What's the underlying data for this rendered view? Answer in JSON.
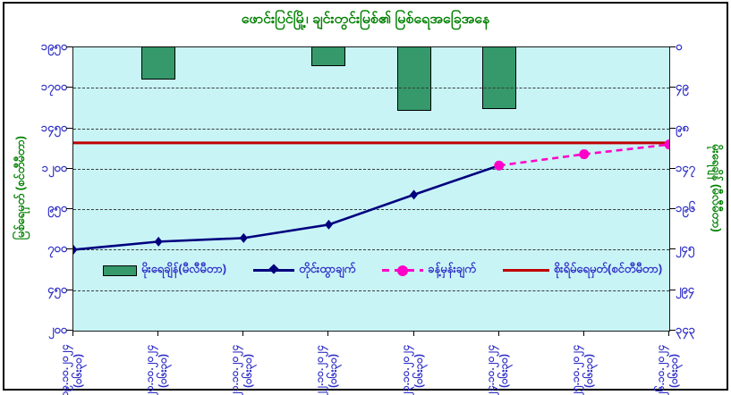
{
  "title": "ဖောင်းပြင်မြို့၊ ချင်းတွင်းမြစ်၏ မြစ်ရေအခြေအနေ",
  "colors": {
    "title_green": "#008000",
    "axis_label_blue": "#3030C8",
    "plot_background": "#C8F4F6",
    "bar_green": "#35996B",
    "observed_navy": "#00007E",
    "forecast_magenta": "#FF00C8",
    "danger_red": "#C00000",
    "frame_black": "#000000"
  },
  "chart_data": {
    "type": "combo-bar-line",
    "title": "ဖောင်းပြင်မြို့၊ ချင်းတွင်းမြစ်၏ မြစ်ရေအခြေအနေ",
    "grid": "horizontal-dashed",
    "legend_position": "inside-bottom-left",
    "categories": [
      {
        "date": "၁၉.၁၀.၂၀၂၄",
        "time": "(၀၆း၃၀)"
      },
      {
        "date": "၂၀.၁၀.၂၀၂၄",
        "time": "(၀၆း၃၀)"
      },
      {
        "date": "၂၁.၁၀.၂၀၂၄",
        "time": "(၀၆း၃၀)"
      },
      {
        "date": "၂၂.၁၀.၂၀၂၄",
        "time": "(၀၆း၃၀)"
      },
      {
        "date": "၂၃.၁၀.၂၀၂၄",
        "time": "(၀၆း၃၀)"
      },
      {
        "date": "၂၄.၁၀.၂၀၂၄",
        "time": "(၀၆း၃၀)"
      },
      {
        "date": "၂၅.၁၀.၂၀၂၄",
        "time": "(၀၆း၃၀)"
      },
      {
        "date": "၂၆.၁၀.၂၀၂၄",
        "time": "(၀၆း၃၀)"
      }
    ],
    "left_axis": {
      "title": "မြစ်ရေမှတ် (စင်တီမီတာ)",
      "min": 200,
      "max": 1950,
      "step": 250,
      "tick_values": [
        1950,
        1700,
        1450,
        1200,
        950,
        700,
        450,
        200
      ],
      "tick_labels": [
        "၁၉၅၀",
        "၁၇၀၀",
        "၁၄၅၀",
        "၁၂၀၀",
        "၉၅၀",
        "၇၀၀",
        "၄၅၀",
        "၂၀၀"
      ]
    },
    "right_axis": {
      "title": "မိုးရေချိန် (မီလီမီတာ)",
      "min": 0,
      "max": 343,
      "step": 49,
      "reversed": true,
      "tick_values": [
        0,
        49,
        98,
        147,
        196,
        245,
        294,
        343
      ],
      "tick_labels": [
        "၀",
        "၄၉",
        "၉၈",
        "၁၄၇",
        "၁၉၆",
        "၂၄၅",
        "၂၉၄",
        "၃၄၃"
      ]
    },
    "series": [
      {
        "name": "မိုးရေချိန်(မီလီမီတာ)",
        "type": "bar",
        "axis": "right",
        "values": [
          null,
          40,
          null,
          24,
          78,
          76,
          null,
          null
        ]
      },
      {
        "name": "တိုင်းထွာချက်",
        "type": "line",
        "marker": "diamond",
        "axis": "left",
        "values": [
          700,
          750,
          772,
          855,
          1040,
          1220,
          null,
          null
        ]
      },
      {
        "name": "ခန့်မှန်းချက်",
        "type": "line-dashed",
        "marker": "circle",
        "axis": "left",
        "values": [
          null,
          null,
          null,
          null,
          null,
          1220,
          1290,
          1350
        ]
      },
      {
        "name": "စိုးရိမ်ရေမှတ်(စင်တီမီတာ)",
        "type": "hline",
        "axis": "left",
        "value": 1360
      }
    ]
  }
}
